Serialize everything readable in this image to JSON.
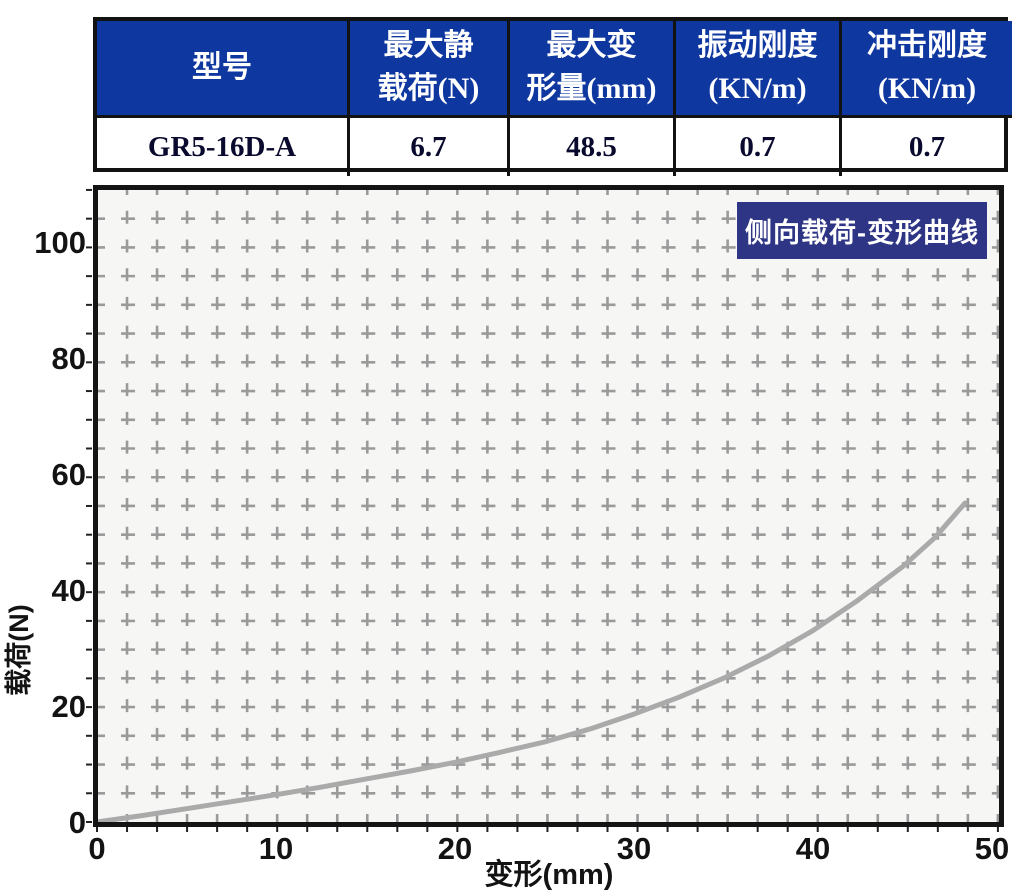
{
  "table": {
    "headers": [
      {
        "line1": "型号",
        "line2": ""
      },
      {
        "line1": "最大静",
        "line2": "载荷(N)"
      },
      {
        "line1": "最大变",
        "line2": "形量(mm)"
      },
      {
        "line1": "振动刚度",
        "line2": "(KN/m)"
      },
      {
        "line1": "冲击刚度",
        "line2": "(KN/m)"
      }
    ],
    "row": [
      "GR5-16D-A",
      "6.7",
      "48.5",
      "0.7",
      "0.7"
    ]
  },
  "chart_data": {
    "type": "line",
    "title": "侧向载荷-变形曲线",
    "xlabel": "变形(mm)",
    "ylabel": "载荷(N)",
    "xlim": [
      0,
      50.5
    ],
    "ylim": [
      0,
      110
    ],
    "x_ticks": [
      0,
      10,
      20,
      30,
      40,
      50
    ],
    "y_ticks": [
      0,
      20,
      40,
      60,
      80,
      100
    ],
    "grid": "fine dashed graph-paper grid",
    "legend_position": "none",
    "series": [
      {
        "name": "侧向载荷-变形曲线",
        "x": [
          0,
          2.5,
          5,
          7.5,
          10,
          12.5,
          15,
          17.5,
          20,
          22.5,
          25,
          27.5,
          30,
          32.5,
          35,
          37.5,
          40,
          42.5,
          45,
          46.8,
          48.5
        ],
        "y": [
          0,
          1.1,
          2.3,
          3.5,
          4.7,
          6.0,
          7.4,
          8.8,
          10.3,
          12.0,
          13.8,
          16.0,
          18.6,
          21.5,
          24.8,
          28.6,
          33.0,
          38.2,
          44.0,
          49.0,
          55.0
        ]
      }
    ]
  },
  "colors": {
    "header_bg": "#0f37a0",
    "header_text": "#ffffff",
    "cell_text": "#0a0a2e",
    "table_border": "#121212",
    "badge_bg": "#2e3584",
    "badge_text": "#ffffff",
    "plot_bg": "#f6f6f4",
    "grid": "#9a9a9a",
    "curve": "#aaaaaa",
    "frame": "#141414",
    "tick_text": "#131313"
  }
}
